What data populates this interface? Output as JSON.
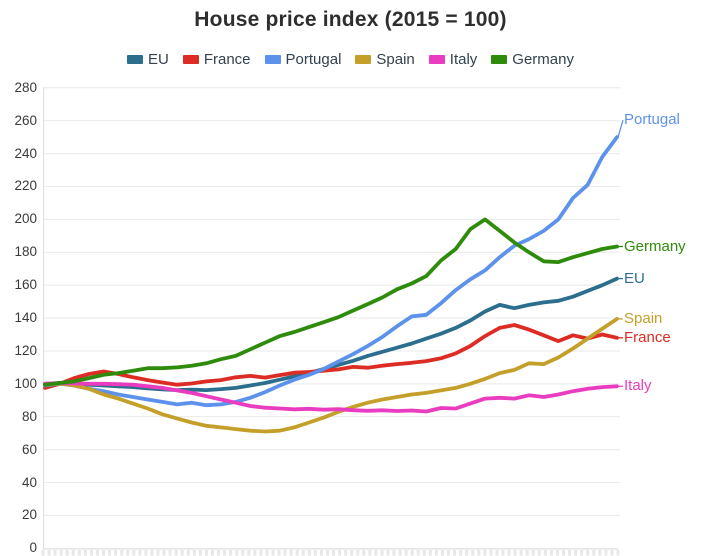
{
  "title": "House price index (2015 = 100)",
  "chart_data": {
    "type": "line",
    "title": "House price index (2015 = 100)",
    "ylabel": "",
    "xlabel": "",
    "ylim": [
      0,
      280
    ],
    "y_tick_step": 20,
    "y_ticks": [
      0,
      20,
      40,
      60,
      80,
      100,
      120,
      140,
      160,
      180,
      200,
      220,
      240,
      260,
      280
    ],
    "grid": "horizontal",
    "legend_position": "top",
    "x_axis": {
      "labels_visible": false,
      "minor_tick_count": 96,
      "x_unit": "time-index"
    },
    "n_points": 40,
    "series": [
      {
        "name": "EU",
        "color": "#2c6e8e",
        "end_label": "EU",
        "end_label_dy": 0,
        "values": [
          100,
          100.5,
          100,
          99.5,
          99,
          98.5,
          98,
          97.3,
          96.6,
          96.2,
          96.5,
          96.2,
          96.8,
          97.5,
          99,
          100.5,
          102.5,
          104.5,
          106.5,
          109,
          111.5,
          114,
          117,
          119.5,
          122,
          124.5,
          127.5,
          130.5,
          134,
          138.5,
          144,
          148,
          146,
          148,
          149.5,
          150.5,
          153,
          156.5,
          160,
          164
        ]
      },
      {
        "name": "France",
        "color": "#dd2c23",
        "end_label": "France",
        "end_label_dy": 0,
        "values": [
          97.5,
          100,
          103.5,
          106,
          107.5,
          106,
          104,
          102.3,
          100.8,
          99.5,
          100.2,
          101.5,
          102.3,
          104,
          104.8,
          103.8,
          105.3,
          106.8,
          107.2,
          108,
          108.8,
          110.3,
          109.8,
          111,
          112,
          112.8,
          113.8,
          115.5,
          118.5,
          123,
          129,
          134,
          135.8,
          133,
          129.5,
          126,
          129.5,
          127.5,
          130,
          128
        ]
      },
      {
        "name": "Portugal",
        "color": "#5c92ec",
        "end_label": "Portugal",
        "end_label_dy": -17,
        "values": [
          99,
          100,
          99,
          97,
          95.5,
          93.5,
          92,
          90.5,
          89,
          87.5,
          88.5,
          87,
          87.5,
          89,
          91.5,
          95,
          99,
          102.5,
          105.5,
          109,
          113.5,
          118,
          123,
          128.5,
          135,
          141,
          142,
          149,
          157,
          163.5,
          169,
          177,
          184,
          188,
          193,
          200,
          213,
          221,
          238,
          250
        ]
      },
      {
        "name": "Spain",
        "color": "#c4a02a",
        "end_label": "Spain",
        "end_label_dy": 0,
        "values": [
          99.5,
          100.2,
          99,
          97,
          93.5,
          91,
          88,
          85,
          81.5,
          79,
          76.5,
          74.5,
          73.5,
          72.5,
          71.5,
          71,
          71.5,
          73.5,
          76.5,
          79.5,
          83,
          86,
          88.5,
          90.5,
          92,
          93.5,
          94.5,
          96,
          97.5,
          100,
          103,
          106.5,
          108.5,
          112.5,
          112,
          116,
          121.5,
          127.5,
          133.5,
          139.5
        ]
      },
      {
        "name": "Italy",
        "color": "#ea3cc0",
        "end_label": "Italy",
        "end_label_dy": 0,
        "values": [
          100,
          100.5,
          100.2,
          100,
          100,
          99.8,
          99.5,
          98.5,
          97.5,
          96,
          94.5,
          92.5,
          90.5,
          88.5,
          86.5,
          85.5,
          85,
          84.5,
          84.8,
          84.3,
          84.6,
          84,
          83.6,
          83.9,
          83.5,
          83.8,
          83.2,
          85.3,
          85,
          88,
          91,
          91.5,
          91,
          93,
          92,
          93.5,
          95.5,
          97,
          98,
          98.5
        ]
      },
      {
        "name": "Germany",
        "color": "#2f8b0b",
        "end_label": "Germany",
        "end_label_dy": 0,
        "values": [
          99.5,
          100.5,
          101.5,
          103.5,
          105.5,
          106.5,
          108,
          109.5,
          109.5,
          110,
          111,
          112.5,
          115,
          117,
          121,
          125,
          129,
          131.5,
          134.5,
          137.5,
          140.5,
          144.5,
          148.5,
          152.5,
          157.5,
          161,
          165.5,
          175,
          182,
          194,
          200,
          193,
          186,
          180,
          174.5,
          174,
          177,
          179.5,
          182,
          183.5
        ]
      }
    ]
  },
  "legend": {
    "items": [
      {
        "label": "EU"
      },
      {
        "label": "France"
      },
      {
        "label": "Portugal"
      },
      {
        "label": "Spain"
      },
      {
        "label": "Italy"
      },
      {
        "label": "Germany"
      }
    ]
  },
  "style": {
    "grid_color": "#e9e9e9",
    "axis_color": "#e2e2e2",
    "tick_color": "#e8e8e8",
    "title_color": "#2e2e2e",
    "legend_text_color": "#33424f",
    "axis_label_color": "#3a3a3a"
  }
}
